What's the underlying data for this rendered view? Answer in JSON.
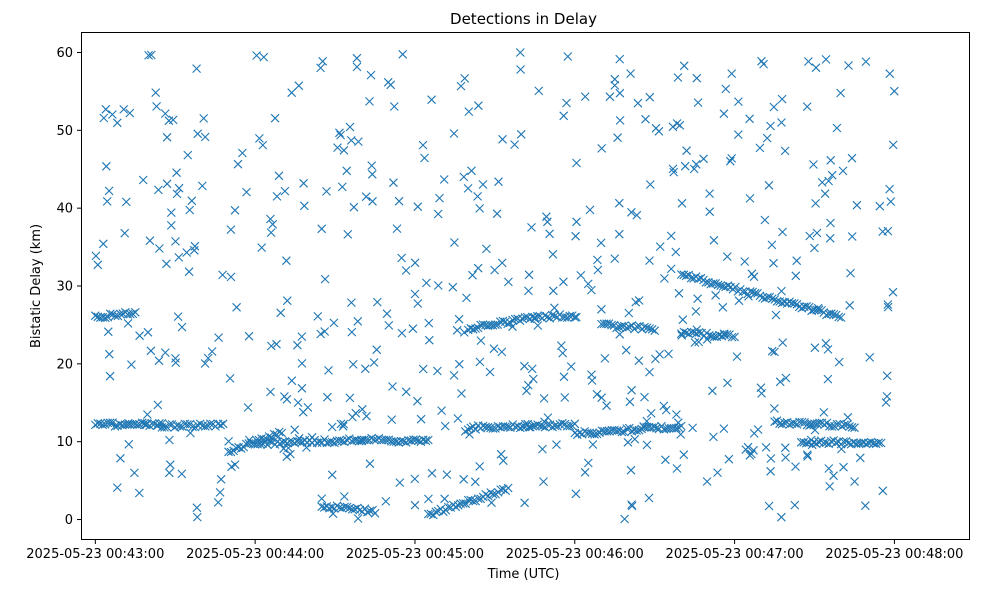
{
  "chart_data": {
    "type": "scatter",
    "title": "Detections in Delay",
    "xlabel": "Time (UTC)",
    "ylabel": "Bistatic Delay (km)",
    "x_ticks": [
      "2025-05-23 00:43:00",
      "2025-05-23 00:44:00",
      "2025-05-23 00:45:00",
      "2025-05-23 00:46:00",
      "2025-05-23 00:47:00",
      "2025-05-23 00:48:00"
    ],
    "y_ticks": [
      "0",
      "10",
      "20",
      "30",
      "40",
      "50",
      "60"
    ],
    "xlim": [
      "2025-05-23 00:42:55",
      "2025-05-23 00:48:28"
    ],
    "ylim": [
      -2.5,
      62.5
    ],
    "grid": false,
    "marker": "x",
    "color": "#1f77b4",
    "tracks": [
      {
        "x_start": "2025-05-23 00:43:00",
        "x_end": "2025-05-23 00:43:25",
        "y_start": 12.2,
        "y_end": 12.2
      },
      {
        "x_start": "2025-05-23 00:43:25",
        "x_end": "2025-05-23 00:43:48",
        "y_start": 12.0,
        "y_end": 12.2
      },
      {
        "x_start": "2025-05-23 00:43:00",
        "x_end": "2025-05-23 00:43:15",
        "y_start": 26.0,
        "y_end": 26.5
      },
      {
        "x_start": "2025-05-23 00:43:50",
        "x_end": "2025-05-23 00:44:10",
        "y_start": 8.8,
        "y_end": 11.2
      },
      {
        "x_start": "2025-05-23 00:44:00",
        "x_end": "2025-05-23 00:44:40",
        "y_start": 9.8,
        "y_end": 10.2
      },
      {
        "x_start": "2025-05-23 00:44:25",
        "x_end": "2025-05-23 00:44:45",
        "y_start": 1.8,
        "y_end": 1.0
      },
      {
        "x_start": "2025-05-23 00:44:40",
        "x_end": "2025-05-23 00:45:05",
        "y_start": 10.3,
        "y_end": 10.0
      },
      {
        "x_start": "2025-05-23 00:45:05",
        "x_end": "2025-05-23 00:45:35",
        "y_start": 0.6,
        "y_end": 4.0
      },
      {
        "x_start": "2025-05-23 00:45:20",
        "x_end": "2025-05-23 00:46:00",
        "y_start": 11.8,
        "y_end": 12.2
      },
      {
        "x_start": "2025-05-23 00:45:20",
        "x_end": "2025-05-23 00:45:45",
        "y_start": 24.5,
        "y_end": 26.0
      },
      {
        "x_start": "2025-05-23 00:45:45",
        "x_end": "2025-05-23 00:46:00",
        "y_start": 26.0,
        "y_end": 26.2
      },
      {
        "x_start": "2025-05-23 00:46:00",
        "x_end": "2025-05-23 00:46:40",
        "y_start": 11.0,
        "y_end": 12.0
      },
      {
        "x_start": "2025-05-23 00:46:10",
        "x_end": "2025-05-23 00:46:30",
        "y_start": 25.0,
        "y_end": 24.5
      },
      {
        "x_start": "2025-05-23 00:46:40",
        "x_end": "2025-05-23 00:47:00",
        "y_start": 24.0,
        "y_end": 23.5
      },
      {
        "x_start": "2025-05-23 00:46:40",
        "x_end": "2025-05-23 00:47:40",
        "y_start": 31.5,
        "y_end": 26.0
      },
      {
        "x_start": "2025-05-23 00:47:15",
        "x_end": "2025-05-23 00:47:45",
        "y_start": 12.5,
        "y_end": 12.0
      },
      {
        "x_start": "2025-05-23 00:47:25",
        "x_end": "2025-05-23 00:47:55",
        "y_start": 10.0,
        "y_end": 9.8
      }
    ],
    "scatter_detections": {
      "count": 560,
      "x_range": [
        "2025-05-23 00:43:00",
        "2025-05-23 00:48:00"
      ],
      "y_range": [
        0,
        60
      ],
      "distribution": "roughly uniform"
    }
  }
}
